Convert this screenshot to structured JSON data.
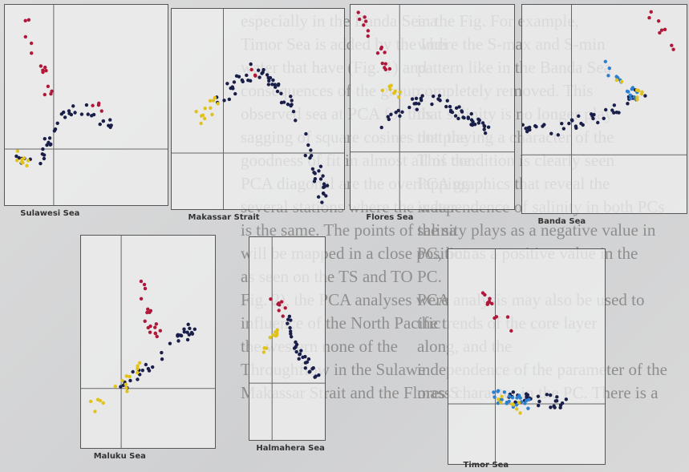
{
  "text_columns": [
    {
      "lines": [
        "especially in the Banda Sea a",
        "Timor Sea is added by the Indi",
        "water that have (Fig. 1) and",
        "consequences of the group",
        "observed sea at PCA for this",
        "sagging of square cosines that the",
        "goodness of fit in almost all of the",
        "PCA diagonal are the overlapping",
        "several stations where the water",
        "is the same. The points of the sa",
        "will be mapped in a close position",
        "as seen on the TS and TO",
        "Fig. 2), the PCA analyses were",
        "influence of the North Pacific",
        "the western none of the",
        "Throughflow in the Sulawe",
        "Makassar Strait and the Flores S"
      ]
    },
    {
      "lines": [
        "in the Fig. For example,",
        "where the S-max and S-min",
        "pattern like in the Banda Sea",
        "completely removed. This",
        "that salinity is no longer play",
        "not playing a character of the",
        "This condition is clearly seen",
        "PCA graphics that reveal the",
        "independence of salinity in both PCs",
        "salinity plays as a negative value in",
        "PC, but as a positive value in the",
        "PC.",
        "PCA analysis may also be used to",
        "the trends of the core layer",
        "along, and the",
        "independence of the parameter of the",
        "mass character in the PC. There is a"
      ]
    }
  ],
  "panels": [
    {
      "label": "Sulawesi Sea"
    },
    {
      "label": "Makassar Strait"
    },
    {
      "label": "Flores Sea"
    },
    {
      "label": "Banda Sea"
    },
    {
      "label": "Maluku Sea"
    },
    {
      "label": "Halmahera Sea"
    },
    {
      "label": "Timor Sea"
    }
  ]
}
